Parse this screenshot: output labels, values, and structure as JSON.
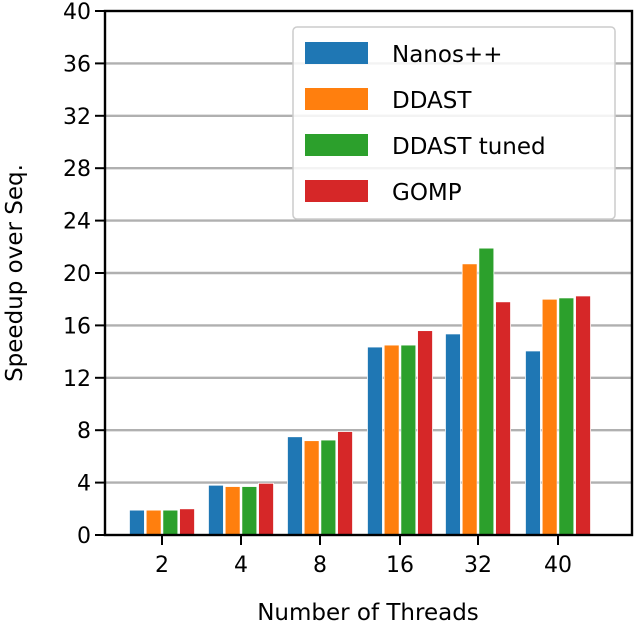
{
  "chart_data": {
    "type": "bar",
    "title": "",
    "xlabel": "Number of Threads",
    "ylabel": "Speedup over Seq.",
    "ylim": [
      0,
      40
    ],
    "yticks": [
      0,
      4,
      8,
      12,
      16,
      20,
      24,
      28,
      32,
      36,
      40
    ],
    "grid": "y",
    "legend_position": "upper right",
    "categories": [
      "2",
      "4",
      "8",
      "16",
      "32",
      "40"
    ],
    "series": [
      {
        "name": "Nanos++",
        "color": "#1f77b4",
        "values": [
          1.9,
          3.8,
          7.5,
          14.35,
          15.35,
          14.05
        ]
      },
      {
        "name": "DDAST",
        "color": "#ff7f0e",
        "values": [
          1.9,
          3.7,
          7.2,
          14.5,
          20.7,
          18.0
        ]
      },
      {
        "name": "DDAST tuned",
        "color": "#2ca02c",
        "values": [
          1.9,
          3.7,
          7.25,
          14.5,
          21.9,
          18.1
        ]
      },
      {
        "name": "GOMP",
        "color": "#d62728",
        "values": [
          2.0,
          3.95,
          7.9,
          15.6,
          17.8,
          18.25
        ]
      }
    ]
  }
}
